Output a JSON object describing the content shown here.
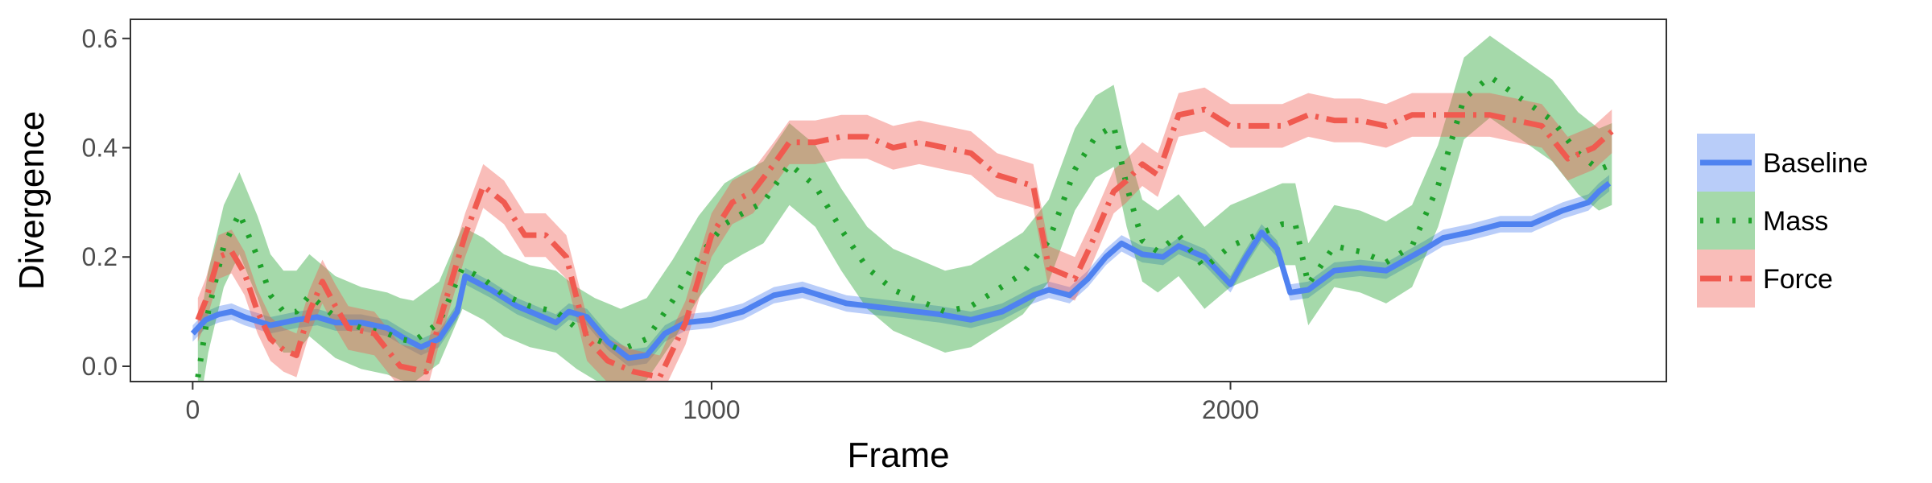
{
  "chart_data": {
    "type": "line",
    "title": "",
    "xlabel": "Frame",
    "ylabel": "Divergence",
    "xlim": [
      -120,
      2840
    ],
    "ylim": [
      -0.028,
      0.635
    ],
    "x_ticks": [
      0,
      1000,
      2000
    ],
    "x_tick_labels": [
      "0",
      "1000",
      "2000"
    ],
    "y_ticks": [
      0.0,
      0.2,
      0.4,
      0.6
    ],
    "y_tick_labels": [
      "0.0",
      "0.2",
      "0.4",
      "0.6"
    ],
    "grid": false,
    "legend_position": "right",
    "series": [
      {
        "name": "Baseline",
        "color": "#4f82f0",
        "dash": "solid",
        "points": [
          [
            0,
            0.06
          ],
          [
            25,
            0.085
          ],
          [
            50,
            0.095
          ],
          [
            75,
            0.1
          ],
          [
            100,
            0.09
          ],
          [
            150,
            0.075
          ],
          [
            200,
            0.085
          ],
          [
            240,
            0.09
          ],
          [
            275,
            0.08
          ],
          [
            325,
            0.08
          ],
          [
            375,
            0.07
          ],
          [
            410,
            0.05
          ],
          [
            440,
            0.035
          ],
          [
            475,
            0.05
          ],
          [
            510,
            0.1
          ],
          [
            525,
            0.165
          ],
          [
            575,
            0.14
          ],
          [
            625,
            0.11
          ],
          [
            675,
            0.09
          ],
          [
            700,
            0.08
          ],
          [
            725,
            0.1
          ],
          [
            760,
            0.09
          ],
          [
            800,
            0.045
          ],
          [
            840,
            0.015
          ],
          [
            875,
            0.02
          ],
          [
            910,
            0.06
          ],
          [
            950,
            0.08
          ],
          [
            1000,
            0.085
          ],
          [
            1060,
            0.1
          ],
          [
            1120,
            0.13
          ],
          [
            1175,
            0.14
          ],
          [
            1260,
            0.115
          ],
          [
            1350,
            0.105
          ],
          [
            1440,
            0.095
          ],
          [
            1500,
            0.085
          ],
          [
            1560,
            0.1
          ],
          [
            1620,
            0.13
          ],
          [
            1650,
            0.14
          ],
          [
            1690,
            0.13
          ],
          [
            1725,
            0.16
          ],
          [
            1760,
            0.2
          ],
          [
            1790,
            0.225
          ],
          [
            1830,
            0.205
          ],
          [
            1870,
            0.2
          ],
          [
            1900,
            0.22
          ],
          [
            1950,
            0.2
          ],
          [
            2000,
            0.15
          ],
          [
            2030,
            0.2
          ],
          [
            2060,
            0.245
          ],
          [
            2090,
            0.215
          ],
          [
            2115,
            0.135
          ],
          [
            2150,
            0.14
          ],
          [
            2200,
            0.175
          ],
          [
            2250,
            0.18
          ],
          [
            2300,
            0.175
          ],
          [
            2375,
            0.215
          ],
          [
            2410,
            0.235
          ],
          [
            2460,
            0.245
          ],
          [
            2520,
            0.26
          ],
          [
            2580,
            0.26
          ],
          [
            2640,
            0.285
          ],
          [
            2690,
            0.3
          ],
          [
            2710,
            0.32
          ],
          [
            2730,
            0.335
          ]
        ],
        "band": 0.015
      },
      {
        "name": "Mass",
        "color": "#1ea12a",
        "dash": "dotted",
        "points": [
          [
            10,
            -0.02
          ],
          [
            30,
            0.1
          ],
          [
            60,
            0.22
          ],
          [
            90,
            0.28
          ],
          [
            125,
            0.2
          ],
          [
            150,
            0.13
          ],
          [
            175,
            0.1
          ],
          [
            200,
            0.1
          ],
          [
            225,
            0.13
          ],
          [
            250,
            0.11
          ],
          [
            275,
            0.09
          ],
          [
            325,
            0.07
          ],
          [
            375,
            0.06
          ],
          [
            400,
            0.05
          ],
          [
            425,
            0.045
          ],
          [
            475,
            0.08
          ],
          [
            520,
            0.18
          ],
          [
            560,
            0.16
          ],
          [
            600,
            0.13
          ],
          [
            650,
            0.11
          ],
          [
            700,
            0.1
          ],
          [
            740,
            0.07
          ],
          [
            775,
            0.05
          ],
          [
            825,
            0.03
          ],
          [
            875,
            0.05
          ],
          [
            925,
            0.12
          ],
          [
            975,
            0.2
          ],
          [
            1025,
            0.26
          ],
          [
            1060,
            0.28
          ],
          [
            1100,
            0.3
          ],
          [
            1150,
            0.37
          ],
          [
            1200,
            0.33
          ],
          [
            1250,
            0.25
          ],
          [
            1300,
            0.18
          ],
          [
            1350,
            0.14
          ],
          [
            1400,
            0.12
          ],
          [
            1450,
            0.1
          ],
          [
            1500,
            0.11
          ],
          [
            1550,
            0.14
          ],
          [
            1600,
            0.17
          ],
          [
            1650,
            0.23
          ],
          [
            1700,
            0.36
          ],
          [
            1740,
            0.42
          ],
          [
            1775,
            0.44
          ],
          [
            1800,
            0.33
          ],
          [
            1830,
            0.23
          ],
          [
            1860,
            0.21
          ],
          [
            1900,
            0.24
          ],
          [
            1950,
            0.18
          ],
          [
            2000,
            0.22
          ],
          [
            2050,
            0.24
          ],
          [
            2100,
            0.26
          ],
          [
            2125,
            0.26
          ],
          [
            2150,
            0.15
          ],
          [
            2200,
            0.22
          ],
          [
            2250,
            0.21
          ],
          [
            2300,
            0.19
          ],
          [
            2350,
            0.22
          ],
          [
            2400,
            0.33
          ],
          [
            2450,
            0.49
          ],
          [
            2500,
            0.53
          ],
          [
            2560,
            0.49
          ],
          [
            2620,
            0.45
          ],
          [
            2670,
            0.39
          ],
          [
            2710,
            0.36
          ],
          [
            2735,
            0.37
          ]
        ],
        "band": 0.075
      },
      {
        "name": "Force",
        "color": "#f05a50",
        "dash": "dashdot",
        "points": [
          [
            10,
            0.085
          ],
          [
            25,
            0.12
          ],
          [
            50,
            0.2
          ],
          [
            75,
            0.21
          ],
          [
            100,
            0.17
          ],
          [
            125,
            0.1
          ],
          [
            150,
            0.05
          ],
          [
            175,
            0.03
          ],
          [
            200,
            0.02
          ],
          [
            225,
            0.1
          ],
          [
            250,
            0.155
          ],
          [
            275,
            0.11
          ],
          [
            300,
            0.07
          ],
          [
            350,
            0.06
          ],
          [
            400,
            0.0
          ],
          [
            450,
            -0.01
          ],
          [
            475,
            0.08
          ],
          [
            525,
            0.24
          ],
          [
            560,
            0.33
          ],
          [
            600,
            0.3
          ],
          [
            640,
            0.24
          ],
          [
            680,
            0.24
          ],
          [
            720,
            0.2
          ],
          [
            760,
            0.05
          ],
          [
            800,
            0.01
          ],
          [
            850,
            -0.01
          ],
          [
            900,
            -0.02
          ],
          [
            950,
            0.08
          ],
          [
            1000,
            0.24
          ],
          [
            1040,
            0.3
          ],
          [
            1080,
            0.32
          ],
          [
            1120,
            0.37
          ],
          [
            1150,
            0.41
          ],
          [
            1200,
            0.41
          ],
          [
            1250,
            0.42
          ],
          [
            1300,
            0.42
          ],
          [
            1350,
            0.4
          ],
          [
            1400,
            0.41
          ],
          [
            1450,
            0.4
          ],
          [
            1500,
            0.39
          ],
          [
            1550,
            0.35
          ],
          [
            1620,
            0.33
          ],
          [
            1650,
            0.18
          ],
          [
            1700,
            0.16
          ],
          [
            1730,
            0.22
          ],
          [
            1775,
            0.32
          ],
          [
            1800,
            0.34
          ],
          [
            1830,
            0.37
          ],
          [
            1860,
            0.35
          ],
          [
            1900,
            0.46
          ],
          [
            1950,
            0.47
          ],
          [
            2000,
            0.44
          ],
          [
            2050,
            0.44
          ],
          [
            2100,
            0.44
          ],
          [
            2150,
            0.46
          ],
          [
            2200,
            0.45
          ],
          [
            2250,
            0.45
          ],
          [
            2300,
            0.44
          ],
          [
            2350,
            0.46
          ],
          [
            2400,
            0.46
          ],
          [
            2450,
            0.46
          ],
          [
            2500,
            0.46
          ],
          [
            2550,
            0.45
          ],
          [
            2600,
            0.44
          ],
          [
            2650,
            0.38
          ],
          [
            2700,
            0.4
          ],
          [
            2735,
            0.43
          ]
        ],
        "band": 0.04
      }
    ]
  }
}
